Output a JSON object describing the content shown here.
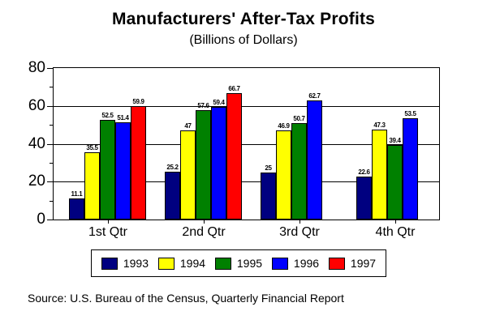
{
  "chart": {
    "title": "Manufacturers' After-Tax Profits",
    "subtitle": "(Billions of Dollars)",
    "source": "Source:  U.S. Bureau of the Census, Quarterly Financial Report"
  },
  "chart_data": {
    "type": "bar",
    "title": "Manufacturers' After-Tax Profits",
    "subtitle": "(Billions of Dollars)",
    "categories": [
      "1st Qtr",
      "2nd Qtr",
      "3rd Qtr",
      "4th Qtr"
    ],
    "series": [
      {
        "name": "1993",
        "color": "#000080",
        "values": [
          11.1,
          25.2,
          25,
          22.6
        ],
        "labels": [
          "11.1",
          "25.2",
          "25",
          "22.6"
        ]
      },
      {
        "name": "1994",
        "color": "#FFFF00",
        "values": [
          35.5,
          47,
          46.9,
          47.3
        ],
        "labels": [
          "35.5",
          "47",
          "46.9",
          "47.3"
        ]
      },
      {
        "name": "1995",
        "color": "#008000",
        "values": [
          52.5,
          57.6,
          50.7,
          39.4
        ],
        "labels": [
          "52.5",
          "57.6",
          "50.7",
          "39.4"
        ]
      },
      {
        "name": "1996",
        "color": "#0000FF",
        "values": [
          51.4,
          59.4,
          62.7,
          53.5
        ],
        "labels": [
          "51.4",
          "59.4",
          "62.7",
          "53.5"
        ]
      },
      {
        "name": "1997",
        "color": "#FF0000",
        "values": [
          59.9,
          66.7,
          null,
          null
        ],
        "labels": [
          "59.9",
          "66.7",
          "",
          ""
        ]
      }
    ],
    "ylim": [
      0,
      80
    ],
    "yticks": [
      0,
      20,
      40,
      60,
      80
    ],
    "yticks_minor": [
      10,
      30,
      50,
      70
    ],
    "grid": true,
    "legend_position": "bottom",
    "legend_entries": [
      "1993",
      "1994",
      "1995",
      "1996",
      "1997"
    ],
    "xlabel": "",
    "ylabel": "",
    "source": "Source:  U.S. Bureau of the Census, Quarterly Financial Report"
  }
}
